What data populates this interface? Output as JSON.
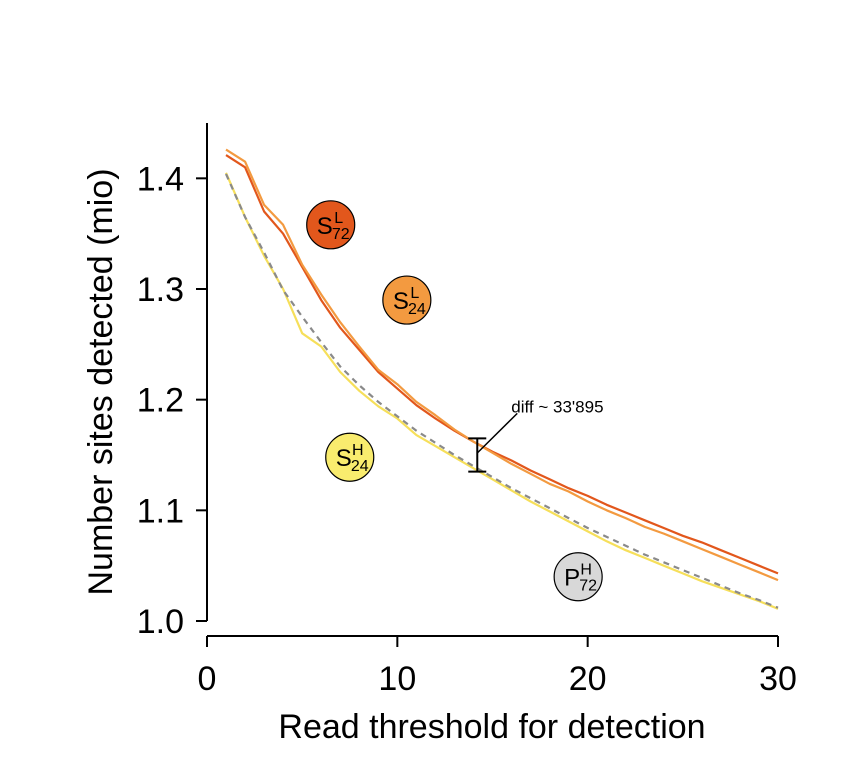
{
  "chart_data": {
    "type": "line",
    "xlabel": "Read threshold for detection",
    "ylabel": "Number sites detected (mio)",
    "xlim": [
      0,
      30
    ],
    "ylim": [
      1.0,
      1.45
    ],
    "xticks": [
      0,
      10,
      20,
      30
    ],
    "yticks": [
      1.0,
      1.1,
      1.2,
      1.3,
      1.4
    ],
    "xtick_labels": [
      "0",
      "10",
      "20",
      "30"
    ],
    "ytick_labels": [
      "1.0",
      "1.1",
      "1.2",
      "1.3",
      "1.4"
    ],
    "grid": false,
    "series": [
      {
        "label": {
          "main": "S",
          "sup": "L",
          "sub": "72"
        },
        "color": "#e2571c",
        "style": "solid",
        "x": [
          1,
          2,
          3,
          4,
          5,
          6,
          7,
          8,
          9,
          10,
          11,
          12,
          13,
          14,
          15,
          16,
          17,
          18,
          19,
          20,
          21,
          22,
          23,
          24,
          25,
          26,
          27,
          28,
          29,
          30
        ],
        "values": [
          1.421,
          1.41,
          1.37,
          1.35,
          1.32,
          1.29,
          1.265,
          1.245,
          1.225,
          1.21,
          1.195,
          1.183,
          1.172,
          1.162,
          1.153,
          1.145,
          1.136,
          1.128,
          1.12,
          1.113,
          1.105,
          1.098,
          1.091,
          1.084,
          1.077,
          1.071,
          1.064,
          1.057,
          1.05,
          1.043
        ]
      },
      {
        "label": {
          "main": "S",
          "sup": "L",
          "sub": "24"
        },
        "color": "#f39a40",
        "style": "solid",
        "x": [
          1,
          2,
          3,
          4,
          5,
          6,
          7,
          8,
          9,
          10,
          11,
          12,
          13,
          14,
          15,
          16,
          17,
          18,
          19,
          20,
          21,
          22,
          23,
          24,
          25,
          26,
          27,
          28,
          29,
          30
        ],
        "values": [
          1.426,
          1.415,
          1.376,
          1.358,
          1.322,
          1.295,
          1.27,
          1.248,
          1.227,
          1.214,
          1.198,
          1.186,
          1.173,
          1.162,
          1.152,
          1.142,
          1.133,
          1.124,
          1.117,
          1.108,
          1.1,
          1.093,
          1.085,
          1.079,
          1.072,
          1.065,
          1.058,
          1.051,
          1.044,
          1.037
        ]
      },
      {
        "label": {
          "main": "S",
          "sup": "H",
          "sub": "24"
        },
        "color": "#f6df5a",
        "style": "solid",
        "x": [
          1,
          2,
          3,
          4,
          5,
          6,
          7,
          8,
          9,
          10,
          11,
          12,
          13,
          14,
          15,
          16,
          17,
          18,
          19,
          20,
          21,
          22,
          23,
          24,
          25,
          26,
          27,
          28,
          29,
          30
        ],
        "values": [
          1.405,
          1.365,
          1.33,
          1.3,
          1.26,
          1.248,
          1.225,
          1.208,
          1.194,
          1.183,
          1.168,
          1.158,
          1.148,
          1.138,
          1.128,
          1.118,
          1.108,
          1.099,
          1.09,
          1.081,
          1.072,
          1.064,
          1.057,
          1.05,
          1.043,
          1.036,
          1.03,
          1.024,
          1.018,
          1.011
        ]
      },
      {
        "label": {
          "main": "P",
          "sup": "H",
          "sub": "72"
        },
        "color": "#8a8a8a",
        "style": "dashed",
        "x": [
          1,
          2,
          3,
          4,
          5,
          6,
          7,
          8,
          9,
          10,
          11,
          12,
          13,
          14,
          15,
          16,
          17,
          18,
          19,
          20,
          21,
          22,
          23,
          24,
          25,
          26,
          27,
          28,
          29,
          30
        ],
        "values": [
          1.404,
          1.365,
          1.333,
          1.299,
          1.275,
          1.252,
          1.23,
          1.213,
          1.198,
          1.185,
          1.172,
          1.161,
          1.15,
          1.14,
          1.13,
          1.12,
          1.111,
          1.102,
          1.093,
          1.084,
          1.076,
          1.068,
          1.06,
          1.053,
          1.046,
          1.039,
          1.032,
          1.025,
          1.019,
          1.012
        ]
      }
    ],
    "annotations": [
      {
        "text": "diff ~ 33'895",
        "x": 14.2,
        "range": [
          1.135,
          1.165
        ]
      }
    ],
    "badges": [
      {
        "main": "S",
        "sup": "L",
        "sub": "72",
        "fill": "#e2571c",
        "x": 6.5,
        "y": 1.358
      },
      {
        "main": "S",
        "sup": "L",
        "sub": "24",
        "fill": "#f39a40",
        "x": 10.5,
        "y": 1.29
      },
      {
        "main": "S",
        "sup": "H",
        "sub": "24",
        "fill": "#f9ec6e",
        "x": 7.5,
        "y": 1.148
      },
      {
        "main": "P",
        "sup": "H",
        "sub": "72",
        "fill": "#d8d8d8",
        "x": 19.5,
        "y": 1.04
      }
    ]
  }
}
